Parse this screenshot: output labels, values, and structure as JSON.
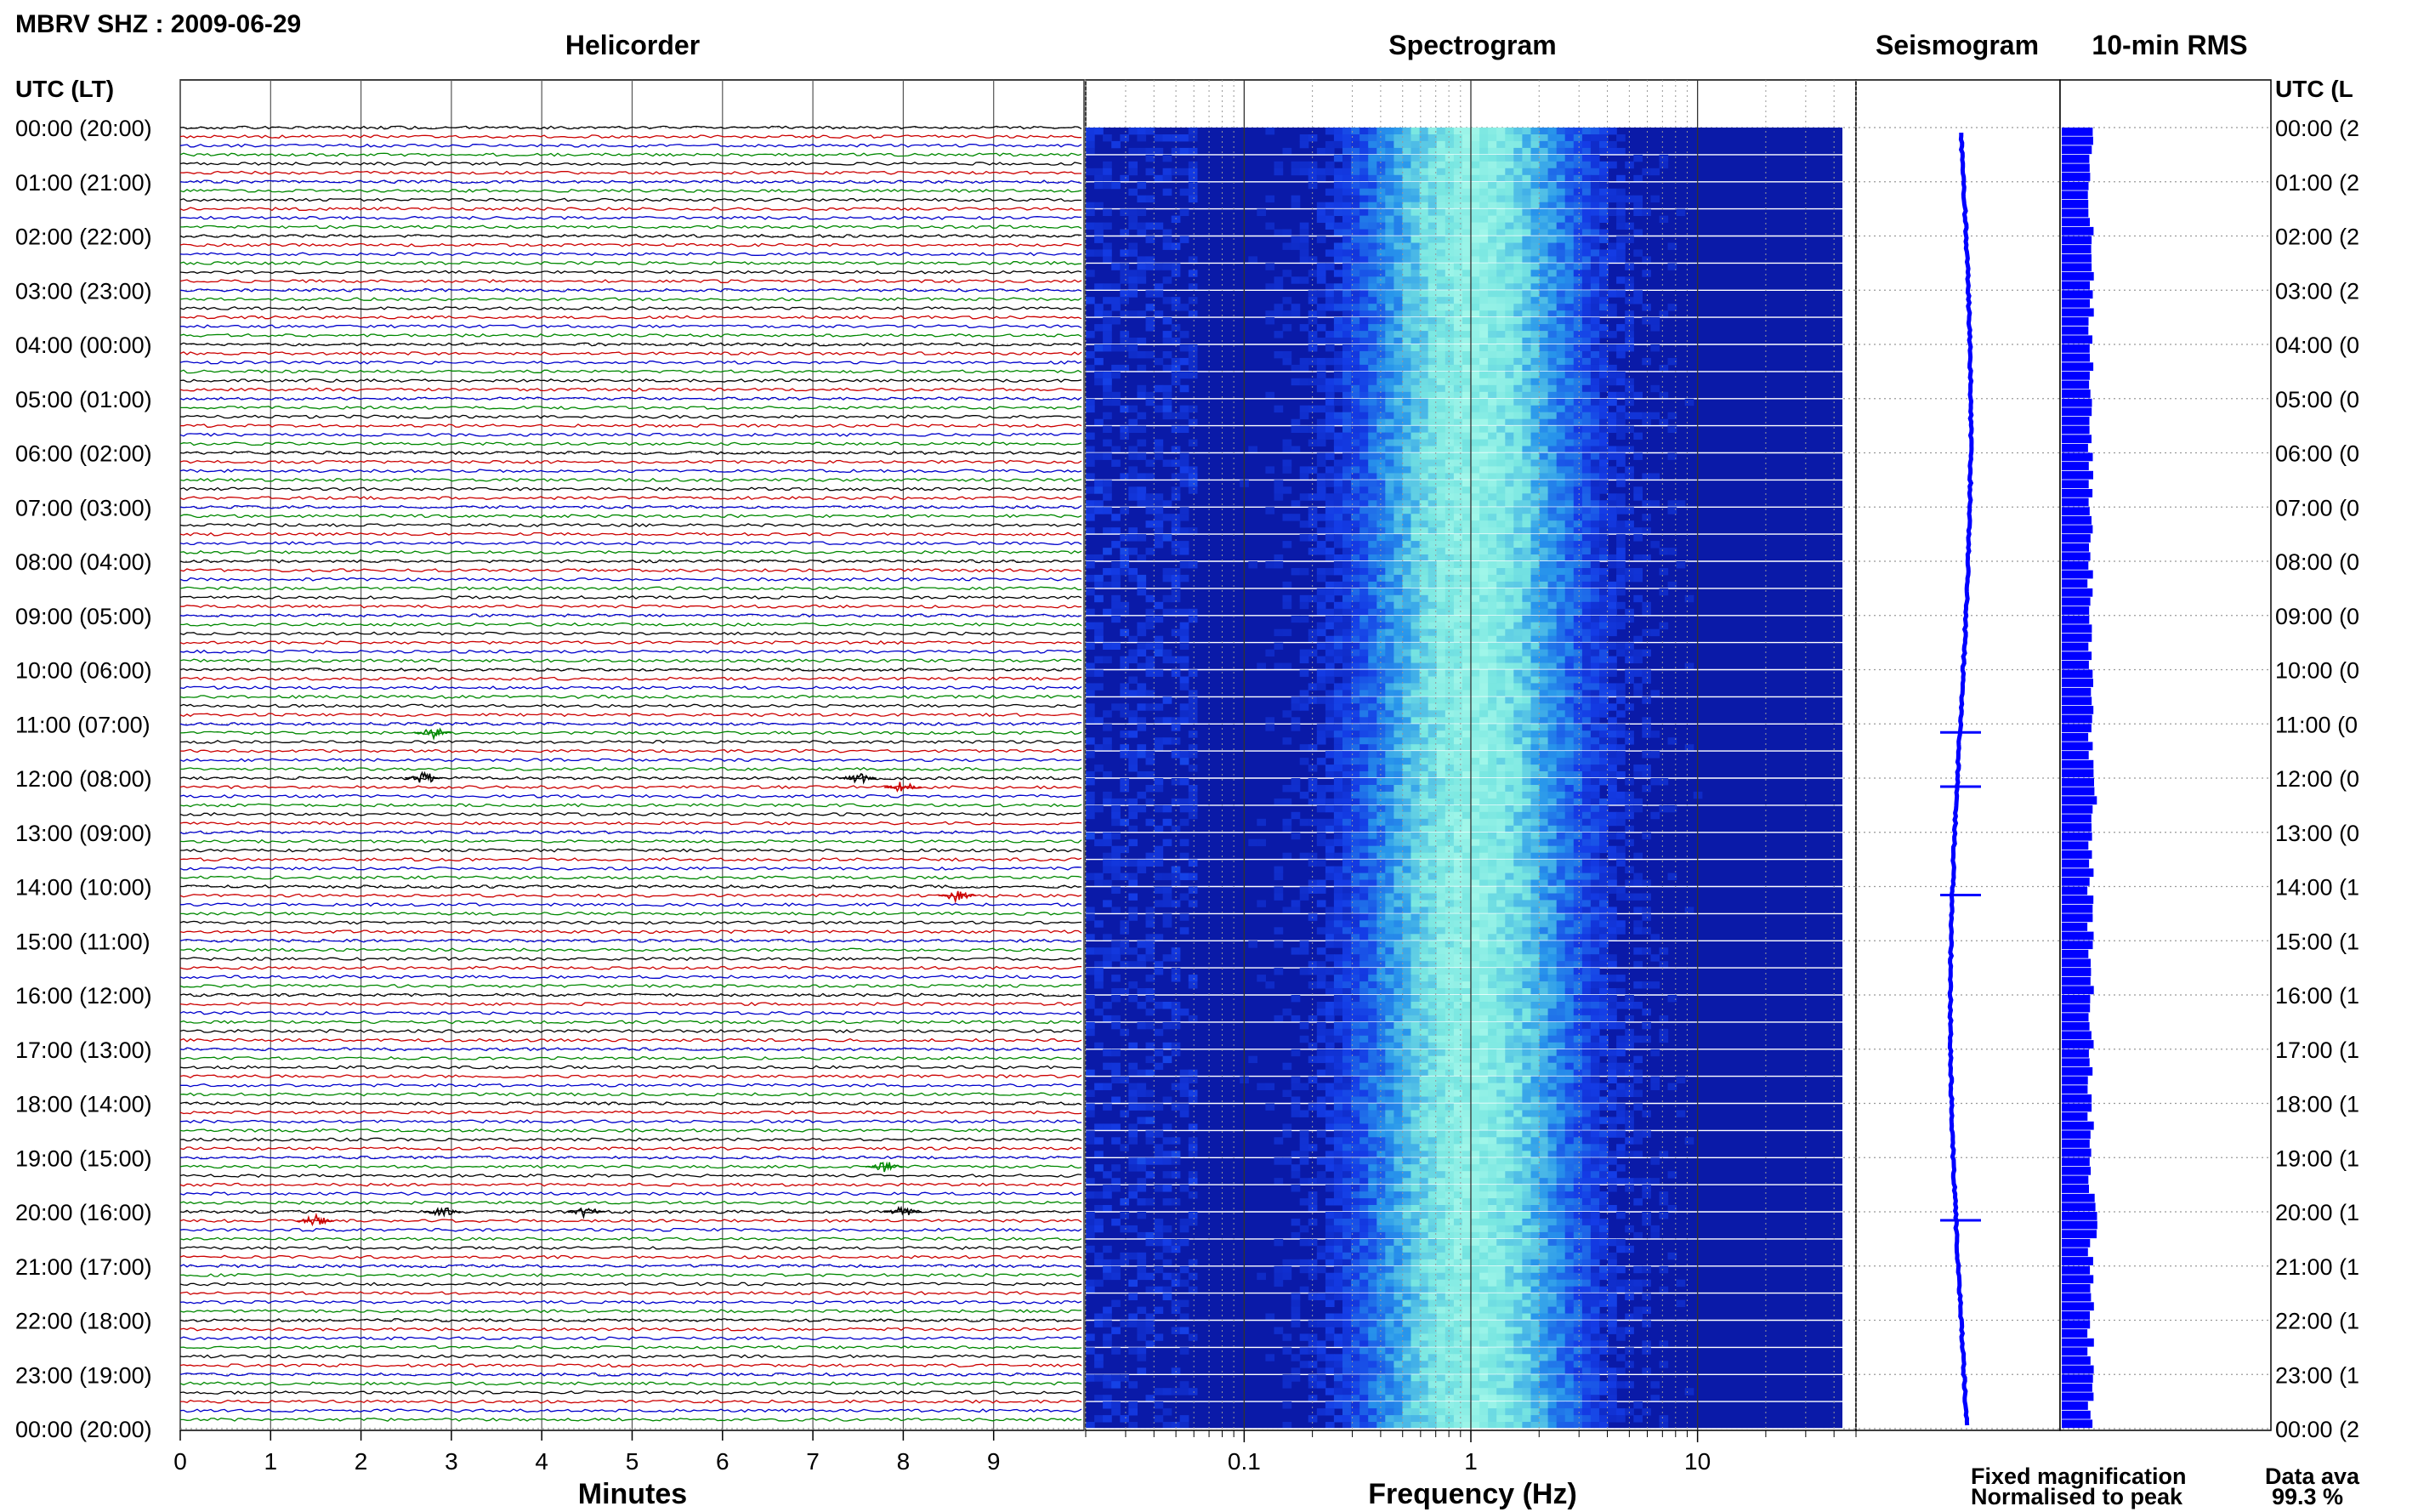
{
  "station_title": "MBRV SHZ : 2009-06-29",
  "panels": {
    "helicorder": "Helicorder",
    "spectrogram": "Spectrogram",
    "seismogram": "Seismogram",
    "rms": "10-min RMS"
  },
  "time_axis": {
    "header_left": "UTC (LT)",
    "header_right": "UTC (L",
    "labels": [
      "00:00 (20:00)",
      "01:00 (21:00)",
      "02:00 (22:00)",
      "03:00 (23:00)",
      "04:00 (00:00)",
      "05:00 (01:00)",
      "06:00 (02:00)",
      "07:00 (03:00)",
      "08:00 (04:00)",
      "09:00 (05:00)",
      "10:00 (06:00)",
      "11:00 (07:00)",
      "12:00 (08:00)",
      "13:00 (09:00)",
      "14:00 (10:00)",
      "15:00 (11:00)",
      "16:00 (12:00)",
      "17:00 (13:00)",
      "18:00 (14:00)",
      "19:00 (15:00)",
      "20:00 (16:00)",
      "21:00 (17:00)",
      "22:00 (18:00)",
      "23:00 (19:00)",
      "00:00 (20:00)"
    ],
    "labels_right": [
      "00:00 (2",
      "01:00 (2",
      "02:00 (2",
      "03:00 (2",
      "04:00 (0",
      "05:00 (0",
      "06:00 (0",
      "07:00 (0",
      "08:00 (0",
      "09:00 (0",
      "10:00 (0",
      "11:00 (0",
      "12:00 (0",
      "13:00 (0",
      "14:00 (1",
      "15:00 (1",
      "16:00 (1",
      "17:00 (1",
      "18:00 (1",
      "19:00 (1",
      "20:00 (1",
      "21:00 (1",
      "22:00 (1",
      "23:00 (1",
      "00:00 (2"
    ]
  },
  "minutes_axis": {
    "label": "Minutes",
    "ticks": [
      "0",
      "1",
      "2",
      "3",
      "4",
      "5",
      "6",
      "7",
      "8",
      "9"
    ]
  },
  "frequency_axis": {
    "label": "Frequency (Hz)",
    "ticks": [
      "0.1",
      "1",
      "10"
    ]
  },
  "legend": {
    "fixed": "Fixed magnification",
    "normalised": "Normalised to peak",
    "fixed_color": "#1a1aff",
    "normalised_color": "#ff0000"
  },
  "availability": {
    "label": "Data ava",
    "value": "99.3 %"
  },
  "colors": {
    "trace_cycle": [
      "#000000",
      "#cc0000",
      "#0000cc",
      "#008800"
    ],
    "spectrogram_base": "#0a1aa8",
    "spectrogram_peak": "#8ff2e6",
    "seismogram": "#0000ff",
    "rms_bar": "#0000ff"
  },
  "chart_data": {
    "type": "heatmap",
    "title": "MBRV SHZ : 2009-06-29",
    "helicorder": {
      "minutes_range": [
        0,
        10
      ],
      "events": [
        {
          "hour": 11,
          "minute": 2.8
        },
        {
          "hour": 12,
          "minute": 2.7
        },
        {
          "hour": 12,
          "minute": 7.5
        },
        {
          "hour": 12,
          "minute": 8.0
        },
        {
          "hour": 14,
          "minute": 8.6
        },
        {
          "hour": 19,
          "minute": 7.8
        },
        {
          "hour": 20,
          "minute": 1.5
        },
        {
          "hour": 20,
          "minute": 2.9
        },
        {
          "hour": 20,
          "minute": 4.5
        },
        {
          "hour": 20,
          "minute": 8.0
        }
      ]
    },
    "spectrogram": {
      "frequency_range_hz": [
        0.02,
        50
      ],
      "x_scale": "log",
      "peak_band_hz": [
        0.5,
        2
      ]
    },
    "seismogram": {
      "spikes_hours": [
        11,
        12,
        14,
        20
      ]
    }
  }
}
